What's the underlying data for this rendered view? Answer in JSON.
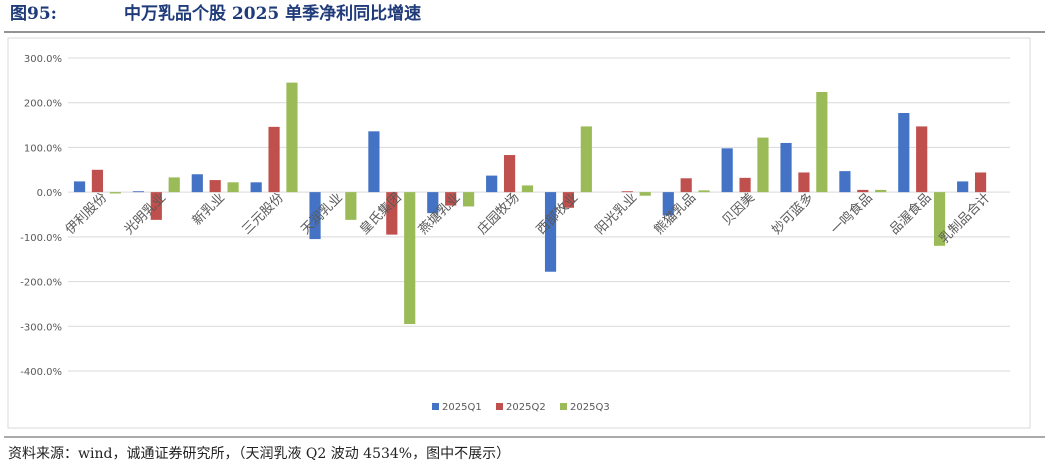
{
  "chart_data": {
    "type": "bar",
    "title": "图95:",
    "subtitle": "中万乳品个股 2025 单季净利同比增速",
    "source": "资料来源：wind，诚通证券研究所，（天润乳液 Q2 波动 4534%，图中不展示）",
    "categories": [
      "伊利股份",
      "光明乳业",
      "新乳业",
      "三元股份",
      "天润乳业",
      "皇氏集团",
      "燕塘乳业",
      "庄园牧场",
      "西部牧业",
      "阳光乳业",
      "熊猫乳品",
      "贝因美",
      "妙可蓝多",
      "一鸣食品",
      "品渥食品",
      "乳制品合计"
    ],
    "series": [
      {
        "name": "2025Q1",
        "color": "#4472c4",
        "values": [
          24,
          2,
          40,
          22,
          -105,
          136,
          -47,
          37,
          -178,
          0,
          -52,
          98,
          110,
          47,
          177,
          24
        ]
      },
      {
        "name": "2025Q2",
        "color": "#c0504d",
        "values": [
          50,
          -62,
          27,
          146,
          null,
          -95,
          -30,
          83,
          -35,
          2,
          31,
          32,
          44,
          5,
          147,
          44
        ]
      },
      {
        "name": "2025Q3",
        "color": "#9bbb59",
        "values": [
          -3,
          33,
          22,
          245,
          -62,
          -295,
          -32,
          15,
          147,
          -8,
          4,
          122,
          224,
          5,
          -120,
          null
        ]
      }
    ],
    "ylim": [
      -400,
      300
    ],
    "yticks": [
      {
        "value": -400,
        "label": "-400.0%"
      },
      {
        "value": -300,
        "label": "-300.0%"
      },
      {
        "value": -200,
        "label": "-200.0%"
      },
      {
        "value": -100,
        "label": "-100.0%"
      },
      {
        "value": 0,
        "label": "0.0%"
      },
      {
        "value": 100,
        "label": "100.0%"
      },
      {
        "value": 200,
        "label": "200.0%"
      },
      {
        "value": 300,
        "label": "300.0%"
      }
    ],
    "grid": true,
    "legend": "bottom"
  }
}
